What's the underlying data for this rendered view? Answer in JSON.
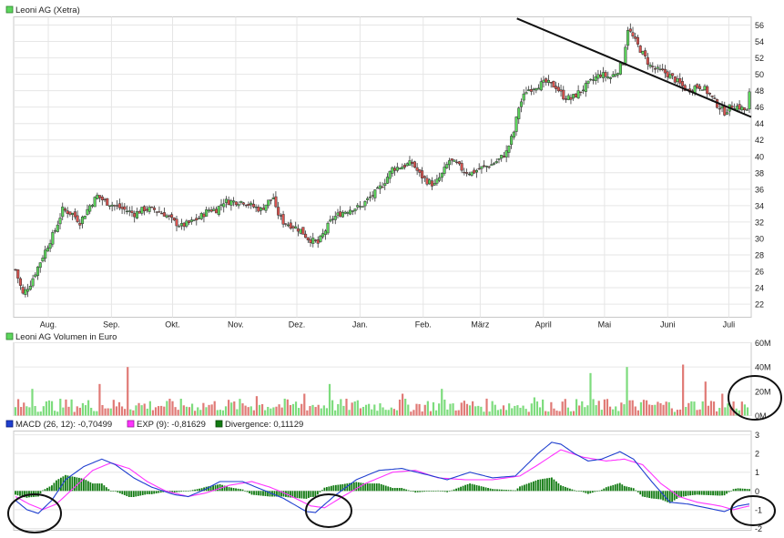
{
  "chart_data": [
    {
      "type": "candlestick",
      "title": "Leoni AG (Xetra)",
      "legend_color": "#5cd65c",
      "up_color": "#5cd65c",
      "down_color": "#d9534f",
      "x_labels": [
        "Aug.",
        "Sep.",
        "Okt.",
        "Nov.",
        "Dez.",
        "Jan.",
        "Feb.",
        "März",
        "April",
        "Mai",
        "Juni",
        "Juli"
      ],
      "label_days": [
        17,
        48,
        78,
        109,
        139,
        170,
        201,
        229,
        260,
        290,
        321,
        351
      ],
      "x_range": [
        0,
        362
      ],
      "y_ticks": [
        22,
        24,
        26,
        28,
        30,
        32,
        34,
        36,
        38,
        40,
        42,
        44,
        46,
        48,
        50,
        52,
        54,
        56
      ],
      "ylim": [
        20.4,
        57.0
      ],
      "price_keypoints": [
        [
          0,
          26.2
        ],
        [
          3,
          23.2
        ],
        [
          6,
          24.5
        ],
        [
          9,
          26.5
        ],
        [
          12,
          28.5
        ],
        [
          16,
          31
        ],
        [
          19,
          33.5
        ],
        [
          23,
          33
        ],
        [
          26,
          32
        ],
        [
          30,
          34
        ],
        [
          33,
          35.2
        ],
        [
          36,
          34.5
        ],
        [
          40,
          34
        ],
        [
          44,
          33.5
        ],
        [
          48,
          33
        ],
        [
          52,
          33.6
        ],
        [
          56,
          33.5
        ],
        [
          60,
          33
        ],
        [
          64,
          32
        ],
        [
          67,
          31.5
        ],
        [
          71,
          32
        ],
        [
          74,
          32.5
        ],
        [
          78,
          33.5
        ],
        [
          81,
          33.5
        ],
        [
          84,
          34.5
        ],
        [
          88,
          34.5
        ],
        [
          92,
          34.5
        ],
        [
          95,
          34
        ],
        [
          99,
          33.5
        ],
        [
          102,
          34.5
        ],
        [
          104,
          35
        ],
        [
          105,
          33.5
        ],
        [
          108,
          32
        ],
        [
          112,
          31.5
        ],
        [
          115,
          31
        ],
        [
          118,
          30
        ],
        [
          122,
          29.4
        ],
        [
          125,
          31
        ],
        [
          128,
          32.5
        ],
        [
          132,
          33.2
        ],
        [
          136,
          33.7
        ],
        [
          139,
          33.8
        ],
        [
          143,
          35
        ],
        [
          146,
          35.8
        ],
        [
          149,
          37
        ],
        [
          152,
          38.5
        ],
        [
          156,
          38.8
        ],
        [
          160,
          39.2
        ],
        [
          163,
          37.8
        ],
        [
          166,
          37
        ],
        [
          169,
          36.5
        ],
        [
          172,
          37.8
        ],
        [
          175,
          39.5
        ],
        [
          178,
          39
        ],
        [
          181,
          38.2
        ],
        [
          184,
          38
        ],
        [
          188,
          38.6
        ],
        [
          192,
          39
        ],
        [
          195,
          39.6
        ],
        [
          198,
          40.5
        ],
        [
          201,
          43
        ],
        [
          203,
          46
        ],
        [
          206,
          48
        ],
        [
          210,
          48.6
        ],
        [
          214,
          49
        ],
        [
          218,
          48.5
        ],
        [
          221,
          47.3
        ],
        [
          224,
          47
        ],
        [
          228,
          48
        ],
        [
          231,
          48.8
        ],
        [
          234,
          49.6
        ],
        [
          236,
          50
        ],
        [
          240,
          49.6
        ],
        [
          243,
          50.5
        ],
        [
          245,
          51.5
        ],
        [
          247,
          55.6
        ],
        [
          250,
          54
        ],
        [
          253,
          52.5
        ],
        [
          256,
          51
        ],
        [
          259,
          50.5
        ],
        [
          262,
          50.2
        ],
        [
          265,
          49.6
        ],
        [
          268,
          48.8
        ],
        [
          271,
          48
        ],
        [
          274,
          48.5
        ],
        [
          277,
          48.5
        ],
        [
          280,
          47.5
        ],
        [
          283,
          46.3
        ],
        [
          286,
          45.4
        ],
        [
          289,
          46.2
        ],
        [
          292,
          46
        ],
        [
          295,
          45.5
        ],
        [
          296,
          47.6
        ]
      ],
      "trendline_start": {
        "x": 247,
        "y": 56.8
      },
      "trendline_end": {
        "x": 362,
        "y": 44.8
      }
    },
    {
      "type": "bar",
      "title": "Leoni AG Volumen in Euro",
      "legend_color": "#5cd65c",
      "up_color": "#7ddc7d",
      "down_color": "#e07a76",
      "y_ticks": [
        0,
        20,
        40,
        60
      ],
      "y_tick_labels": [
        "0M",
        "20M",
        "40M",
        "60M"
      ],
      "ylim": [
        0,
        60
      ],
      "unit": "M",
      "typical_range": [
        3,
        14
      ],
      "spikes": [
        [
          6,
          22
        ],
        [
          30,
          26
        ],
        [
          40,
          40
        ],
        [
          86,
          16
        ],
        [
          103,
          18
        ],
        [
          112,
          26
        ],
        [
          138,
          18
        ],
        [
          152,
          22
        ],
        [
          185,
          15
        ],
        [
          205,
          35
        ],
        [
          218,
          40
        ],
        [
          238,
          42
        ],
        [
          246,
          28
        ],
        [
          252,
          18
        ]
      ]
    },
    {
      "type": "line",
      "title": "MACD",
      "ylim": [
        -2.1,
        3.2
      ],
      "y_ticks": [
        -2,
        -1,
        0,
        1,
        2,
        3
      ],
      "series": [
        {
          "name": "MACD (26, 12)",
          "value_text": "-0,70499",
          "color": "#1f3fcf"
        },
        {
          "name": "EXP (9)",
          "value_text": "-0,81629",
          "color": "#ff33ff"
        },
        {
          "name": "Divergence",
          "value_text": "0,11129",
          "color": "#117a11"
        }
      ],
      "macd_keypoints": [
        [
          0,
          -0.5
        ],
        [
          5,
          -1.0
        ],
        [
          10,
          -1.2
        ],
        [
          16,
          -0.5
        ],
        [
          22,
          0.6
        ],
        [
          30,
          1.3
        ],
        [
          38,
          1.7
        ],
        [
          44,
          1.4
        ],
        [
          52,
          0.7
        ],
        [
          60,
          0.2
        ],
        [
          70,
          -0.2
        ],
        [
          76,
          -0.3
        ],
        [
          82,
          0.0
        ],
        [
          90,
          0.5
        ],
        [
          100,
          0.5
        ],
        [
          108,
          0.1
        ],
        [
          118,
          -0.4
        ],
        [
          128,
          -1.1
        ],
        [
          132,
          -1.15
        ],
        [
          140,
          -0.3
        ],
        [
          150,
          0.6
        ],
        [
          160,
          1.1
        ],
        [
          170,
          1.2
        ],
        [
          180,
          0.9
        ],
        [
          190,
          0.6
        ],
        [
          200,
          1.0
        ],
        [
          210,
          0.7
        ],
        [
          220,
          0.8
        ],
        [
          230,
          2.0
        ],
        [
          236,
          2.6
        ],
        [
          240,
          2.5
        ],
        [
          246,
          2.0
        ],
        [
          252,
          1.6
        ],
        [
          258,
          1.7
        ],
        [
          266,
          2.1
        ],
        [
          272,
          1.7
        ],
        [
          280,
          0.5
        ],
        [
          288,
          -0.6
        ],
        [
          296,
          -0.7
        ],
        [
          304,
          -0.9
        ],
        [
          312,
          -1.1
        ],
        [
          318,
          -0.8
        ],
        [
          323,
          -0.7
        ]
      ],
      "signal_keypoints": [
        [
          0,
          -0.3
        ],
        [
          6,
          -0.7
        ],
        [
          12,
          -1.0
        ],
        [
          18,
          -0.7
        ],
        [
          26,
          0.2
        ],
        [
          34,
          1.1
        ],
        [
          42,
          1.5
        ],
        [
          50,
          1.2
        ],
        [
          58,
          0.5
        ],
        [
          66,
          0.0
        ],
        [
          76,
          -0.3
        ],
        [
          84,
          -0.1
        ],
        [
          94,
          0.3
        ],
        [
          104,
          0.5
        ],
        [
          112,
          0.2
        ],
        [
          120,
          -0.2
        ],
        [
          130,
          -0.8
        ],
        [
          136,
          -0.9
        ],
        [
          144,
          -0.3
        ],
        [
          154,
          0.4
        ],
        [
          166,
          1.0
        ],
        [
          176,
          1.1
        ],
        [
          186,
          0.7
        ],
        [
          198,
          0.6
        ],
        [
          210,
          0.6
        ],
        [
          222,
          0.8
        ],
        [
          230,
          1.4
        ],
        [
          240,
          2.2
        ],
        [
          250,
          1.8
        ],
        [
          260,
          1.6
        ],
        [
          268,
          1.7
        ],
        [
          276,
          1.4
        ],
        [
          284,
          0.4
        ],
        [
          292,
          -0.3
        ],
        [
          300,
          -0.6
        ],
        [
          310,
          -0.8
        ],
        [
          316,
          -1.0
        ],
        [
          323,
          -0.8
        ]
      ],
      "annotations": [
        "circle",
        "circle",
        "circle",
        "circle"
      ]
    }
  ]
}
